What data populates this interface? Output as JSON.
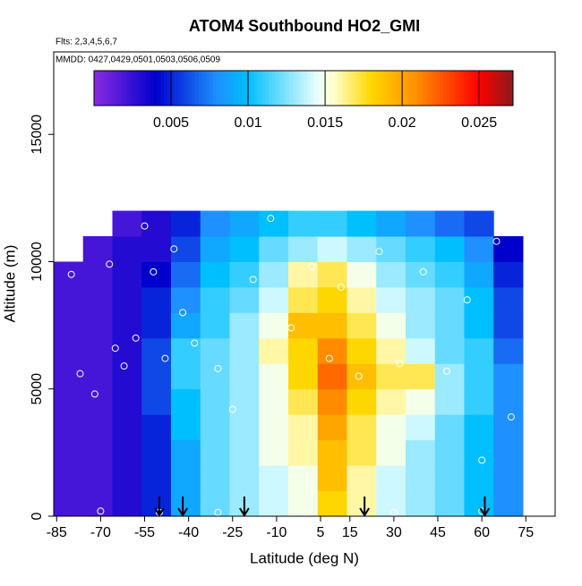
{
  "chart_data": {
    "type": "heatmap",
    "title": "ATOM4 Southbound HO2_GMI",
    "subtitle_lines": [
      "Flts: 2,3,4,5,6,7",
      "MMDD: 0427,0429,0501,0503,0506,0509"
    ],
    "x_label": "Latitude (deg N)",
    "y_label": "Altitude (m)",
    "xlim": [
      -86,
      85
    ],
    "ylim": [
      0,
      18240
    ],
    "xticks": [
      -85,
      -70,
      -55,
      -40,
      -25,
      -10,
      5,
      15,
      30,
      45,
      60,
      75
    ],
    "yticks": [
      0,
      5000,
      10000,
      15000
    ],
    "lat_bins": [
      -86,
      -76,
      -66,
      -56,
      -46,
      -36,
      -26,
      -16,
      -6,
      4,
      14,
      24,
      34,
      44,
      54,
      64,
      74
    ],
    "alt_bins": [
      0,
      1000,
      2000,
      3000,
      4000,
      5000,
      6000,
      7000,
      8000,
      9000,
      10000,
      11000,
      12000
    ],
    "values": [
      [
        0.002,
        0.002,
        0.003,
        0.005,
        0.009,
        0.012,
        0.013,
        0.014,
        0.015,
        0.018,
        0.016,
        0.014,
        0.013,
        0.012,
        0.01,
        0.008
      ],
      [
        0.002,
        0.002,
        0.003,
        0.005,
        0.009,
        0.012,
        0.013,
        0.014,
        0.015,
        0.019,
        0.016,
        0.014,
        0.013,
        0.012,
        0.01,
        0.008
      ],
      [
        0.002,
        0.002,
        0.003,
        0.005,
        0.009,
        0.012,
        0.013,
        0.015,
        0.016,
        0.019,
        0.017,
        0.015,
        0.013,
        0.012,
        0.01,
        0.008
      ],
      [
        0.002,
        0.002,
        0.003,
        0.005,
        0.01,
        0.012,
        0.013,
        0.015,
        0.016,
        0.02,
        0.017,
        0.015,
        0.014,
        0.012,
        0.01,
        0.008
      ],
      [
        0.002,
        0.002,
        0.003,
        0.006,
        0.01,
        0.012,
        0.013,
        0.015,
        0.017,
        0.021,
        0.018,
        0.016,
        0.015,
        0.013,
        0.011,
        0.008
      ],
      [
        0.002,
        0.002,
        0.003,
        0.006,
        0.011,
        0.012,
        0.013,
        0.015,
        0.018,
        0.022,
        0.019,
        0.017,
        0.017,
        0.013,
        0.011,
        0.008
      ],
      [
        0.002,
        0.002,
        0.003,
        0.006,
        0.011,
        0.012,
        0.013,
        0.016,
        0.018,
        0.021,
        0.018,
        0.016,
        0.014,
        0.012,
        0.011,
        0.007
      ],
      [
        0.002,
        0.002,
        0.003,
        0.005,
        0.009,
        0.011,
        0.013,
        0.015,
        0.019,
        0.019,
        0.017,
        0.015,
        0.013,
        0.012,
        0.01,
        0.006
      ],
      [
        0.002,
        0.002,
        0.003,
        0.005,
        0.008,
        0.011,
        0.012,
        0.014,
        0.017,
        0.018,
        0.016,
        0.014,
        0.013,
        0.012,
        0.01,
        0.006
      ],
      [
        0.002,
        0.002,
        0.003,
        0.004,
        0.007,
        0.01,
        0.011,
        0.013,
        0.016,
        0.017,
        0.015,
        0.013,
        0.012,
        0.011,
        0.009,
        0.005
      ],
      [
        null,
        0.002,
        0.003,
        0.003,
        0.006,
        0.009,
        0.01,
        0.012,
        0.013,
        0.014,
        0.013,
        0.012,
        0.011,
        0.01,
        0.008,
        0.004
      ],
      [
        null,
        null,
        0.002,
        0.003,
        0.005,
        0.008,
        0.009,
        0.01,
        0.011,
        0.011,
        0.01,
        0.009,
        0.008,
        0.007,
        0.006,
        null
      ]
    ],
    "colorbar": {
      "lim": [
        0,
        0.0272
      ],
      "ticks": [
        0.005,
        0.01,
        0.015,
        0.02,
        0.025
      ]
    },
    "colorscale": [
      [
        0,
        "#8a2be2"
      ],
      [
        0.004,
        "#0000cd"
      ],
      [
        0.008,
        "#1e90ff"
      ],
      [
        0.01,
        "#00bfff"
      ],
      [
        0.0145,
        "#e8ffff"
      ],
      [
        0.0155,
        "#ffffd0"
      ],
      [
        0.018,
        "#ffd700"
      ],
      [
        0.021,
        "#ff8c00"
      ],
      [
        0.025,
        "#ff0000"
      ],
      [
        0.0272,
        "#8b1a1a"
      ]
    ],
    "points": {
      "x": [
        -80,
        -77,
        -72,
        -67,
        -65,
        -62,
        -58,
        -55,
        -52,
        -48,
        -45,
        -42,
        -38,
        -30,
        -25,
        -18,
        -12,
        -5,
        2,
        8,
        12,
        18,
        25,
        32,
        40,
        48,
        55,
        60,
        65,
        70,
        -70,
        -50,
        -30,
        0,
        30,
        60
      ],
      "y": [
        9500,
        5600,
        4800,
        9900,
        6600,
        5900,
        7000,
        11400,
        9600,
        6200,
        10500,
        8000,
        6800,
        5800,
        4200,
        9300,
        11700,
        7400,
        9800,
        6200,
        9000,
        5500,
        10400,
        6000,
        9600,
        5700,
        8500,
        2200,
        10800,
        3900,
        200,
        150,
        150,
        150,
        150,
        200
      ]
    },
    "arrows": [
      -50,
      -42,
      -21,
      20,
      61
    ]
  }
}
